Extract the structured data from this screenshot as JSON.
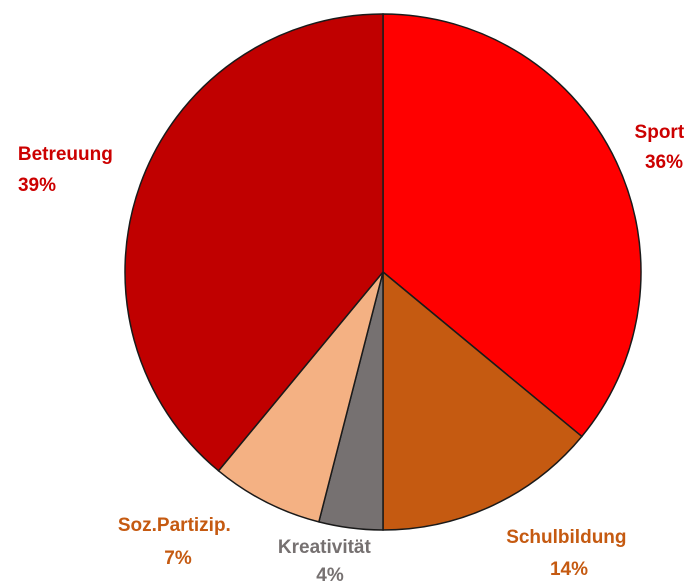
{
  "chart_data": {
    "type": "pie",
    "start_angle_deg": 0,
    "direction": "clockwise",
    "legend": "none",
    "slices": [
      {
        "name": "Sport",
        "value": 36,
        "pct_label": "36%",
        "color": "#ff0000",
        "label_color": "#cc0000"
      },
      {
        "name": "Schulbildung",
        "value": 14,
        "pct_label": "14%",
        "color": "#c55a11",
        "label_color": "#c55a11"
      },
      {
        "name": "Kreativität",
        "value": 4,
        "pct_label": "4%",
        "color": "#767171",
        "label_color": "#767171"
      },
      {
        "name": "Soz.Partizip.",
        "value": 7,
        "pct_label": "7%",
        "color": "#f4b183",
        "label_color": "#c55a11"
      },
      {
        "name": "Betreuung",
        "value": 39,
        "pct_label": "39%",
        "color": "#c00000",
        "label_color": "#cc0000"
      }
    ]
  }
}
